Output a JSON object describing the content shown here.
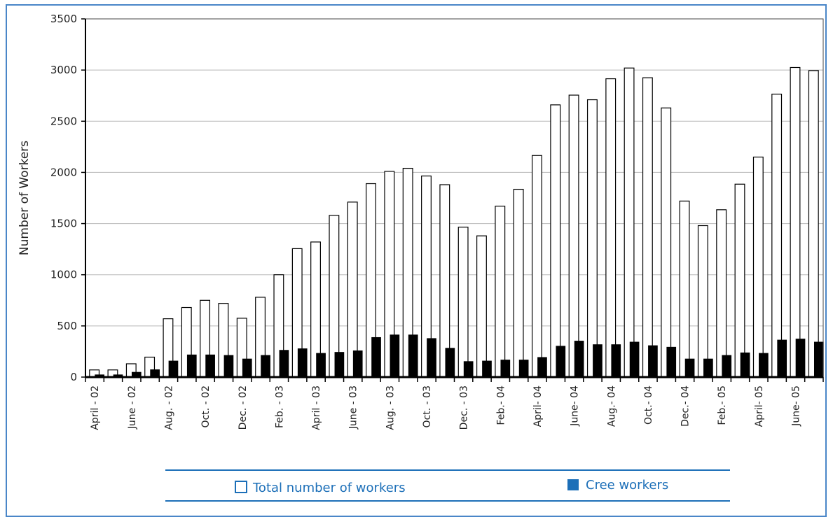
{
  "chart_data": {
    "type": "bar",
    "title": "",
    "ylabel": "Number of Workers",
    "xlabel": "",
    "ylim": [
      0,
      3500
    ],
    "yticks": [
      0,
      500,
      1000,
      1500,
      2000,
      2500,
      3000,
      3500
    ],
    "grid": true,
    "legend_placement": "bottom",
    "x_tick_labels": [
      {
        "index": 0,
        "label": "April - 02"
      },
      {
        "index": 2,
        "label": "June - 02"
      },
      {
        "index": 4,
        "label": "Aug. - 02"
      },
      {
        "index": 6,
        "label": "Oct. - 02"
      },
      {
        "index": 8,
        "label": "Dec. - 02"
      },
      {
        "index": 10,
        "label": "Feb. - 03"
      },
      {
        "index": 12,
        "label": "April - 03"
      },
      {
        "index": 14,
        "label": "June - 03"
      },
      {
        "index": 16,
        "label": "Aug. - 03"
      },
      {
        "index": 18,
        "label": "Oct. - 03"
      },
      {
        "index": 20,
        "label": "Dec. - 03"
      },
      {
        "index": 22,
        "label": "Feb.- 04"
      },
      {
        "index": 24,
        "label": "April- 04"
      },
      {
        "index": 26,
        "label": "June- 04"
      },
      {
        "index": 28,
        "label": "Aug.- 04"
      },
      {
        "index": 30,
        "label": "Oct.- 04"
      },
      {
        "index": 32,
        "label": "Dec.- 04"
      },
      {
        "index": 34,
        "label": "Feb.- 05"
      },
      {
        "index": 36,
        "label": "April- 05"
      },
      {
        "index": 38,
        "label": "June- 05"
      }
    ],
    "series": [
      {
        "name": "Total number of workers",
        "color": "#ffffff",
        "values": [
          70,
          70,
          130,
          195,
          570,
          680,
          750,
          720,
          575,
          780,
          1000,
          1255,
          1320,
          1580,
          1710,
          1890,
          2010,
          2040,
          1965,
          1880,
          1465,
          1380,
          1670,
          1835,
          2165,
          2660,
          2755,
          2710,
          2915,
          3020,
          2925,
          2630,
          1720,
          1480,
          1635,
          1885,
          2150,
          2765,
          3025,
          2995
        ]
      },
      {
        "name": "Cree workers",
        "color": "#000000",
        "values": [
          25,
          25,
          50,
          75,
          160,
          220,
          220,
          215,
          180,
          215,
          265,
          280,
          235,
          245,
          260,
          390,
          415,
          415,
          380,
          285,
          155,
          160,
          170,
          170,
          195,
          305,
          355,
          320,
          320,
          345,
          310,
          295,
          180,
          180,
          215,
          240,
          235,
          365,
          375,
          345
        ]
      }
    ]
  },
  "legend": {
    "total_label": "Total number of workers",
    "cree_label": "Cree workers",
    "accent_color": "#1c6fb8"
  }
}
